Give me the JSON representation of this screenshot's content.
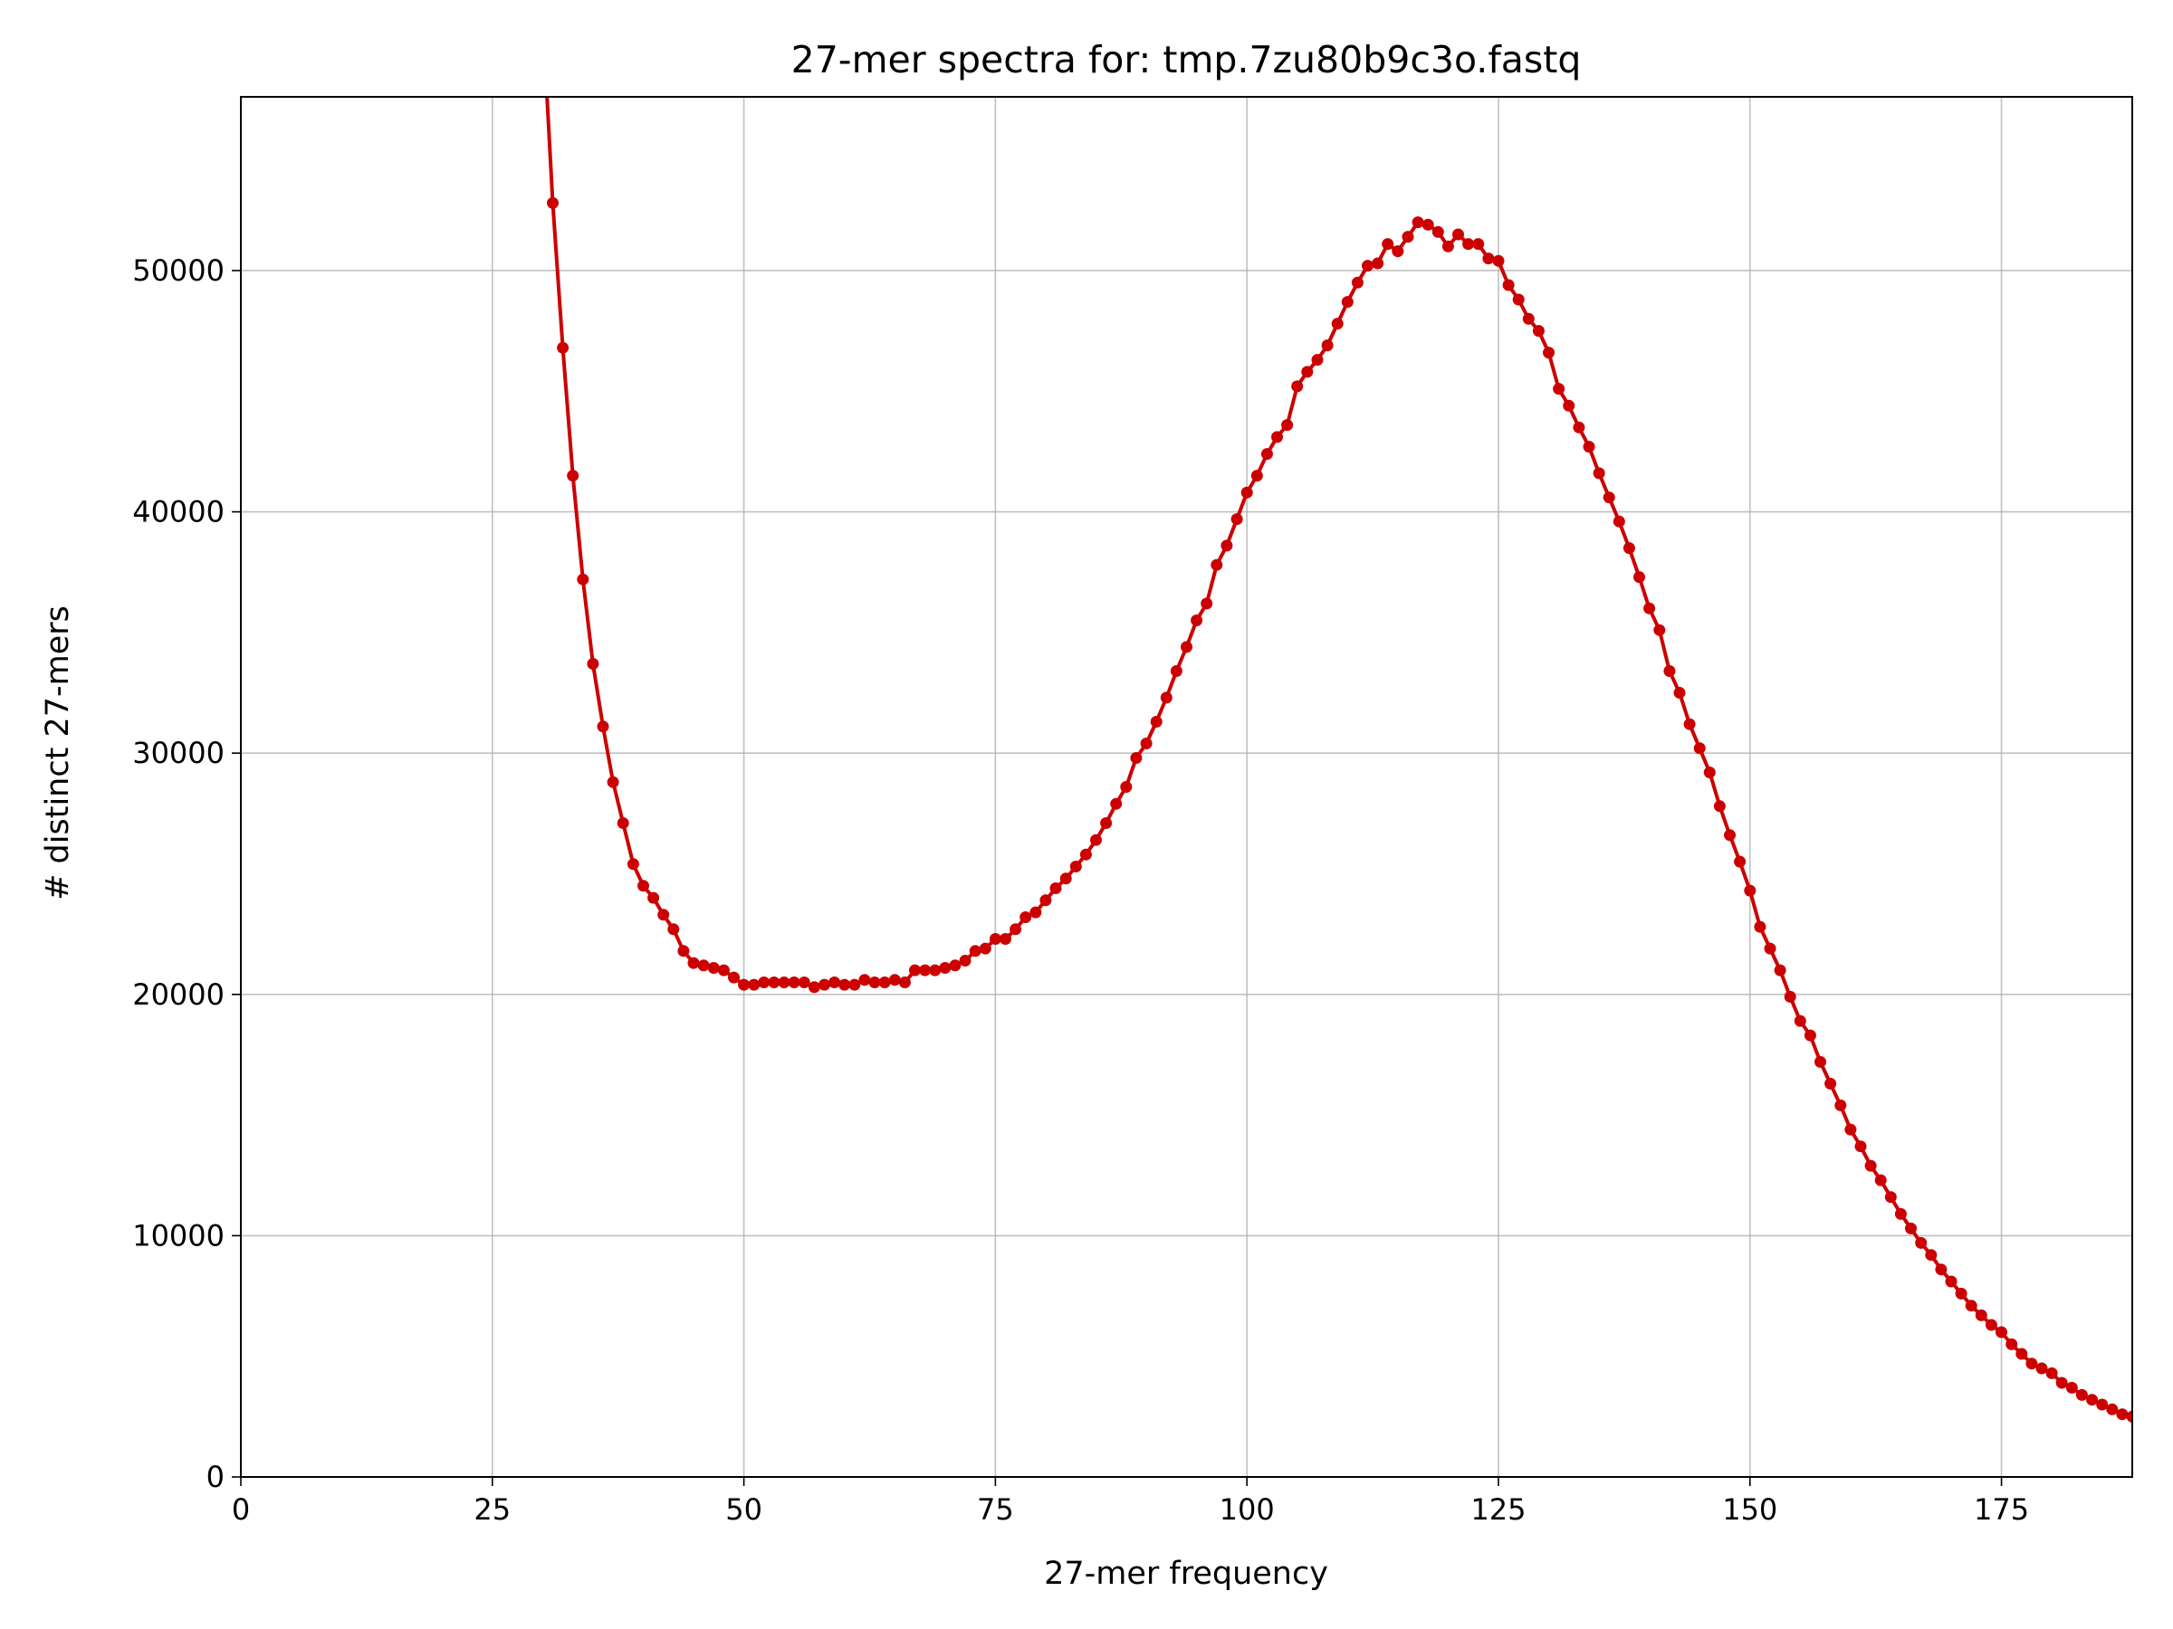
{
  "chart_data": {
    "type": "line",
    "title": "27-mer spectra for: tmp.7zu80b9c3o.fastq",
    "xlabel": "27-mer frequency",
    "ylabel": "# distinct 27-mers",
    "xlim": [
      0,
      188
    ],
    "ylim": [
      0,
      57200
    ],
    "xticks": [
      0,
      25,
      50,
      75,
      100,
      125,
      150,
      175
    ],
    "yticks": [
      0,
      10000,
      20000,
      30000,
      40000,
      50000
    ],
    "grid": true,
    "legend": "none",
    "series": [
      {
        "color": "#cc0000",
        "marker": "circle",
        "x": [
          30,
          31,
          32,
          33,
          34,
          35,
          36,
          37,
          38,
          39,
          40,
          41,
          42,
          43,
          44,
          45,
          46,
          47,
          48,
          49,
          50,
          51,
          52,
          53,
          54,
          55,
          56,
          57,
          58,
          59,
          60,
          61,
          62,
          63,
          64,
          65,
          66,
          67,
          68,
          69,
          70,
          71,
          72,
          73,
          74,
          75,
          76,
          77,
          78,
          79,
          80,
          81,
          82,
          83,
          84,
          85,
          86,
          87,
          88,
          89,
          90,
          91,
          92,
          93,
          94,
          95,
          96,
          97,
          98,
          99,
          100,
          101,
          102,
          103,
          104,
          105,
          106,
          107,
          108,
          109,
          110,
          111,
          112,
          113,
          114,
          115,
          116,
          117,
          118,
          119,
          120,
          121,
          122,
          123,
          124,
          125,
          126,
          127,
          128,
          129,
          130,
          131,
          132,
          133,
          134,
          135,
          136,
          137,
          138,
          139,
          140,
          141,
          142,
          143,
          144,
          145,
          146,
          147,
          148,
          149,
          150,
          151,
          152,
          153,
          154,
          155,
          156,
          157,
          158,
          159,
          160,
          161,
          162,
          163,
          164,
          165,
          166,
          167,
          168,
          169,
          170,
          171,
          172,
          173,
          174,
          175,
          176,
          177,
          178,
          179,
          180,
          181,
          182,
          183,
          184,
          185,
          186,
          187,
          188
        ],
        "y": [
          60500,
          52800,
          46800,
          41500,
          37200,
          33700,
          31100,
          28800,
          27100,
          25400,
          24500,
          24000,
          23300,
          22700,
          21800,
          21300,
          21200,
          21100,
          21000,
          20700,
          20400,
          20400,
          20500,
          20500,
          20500,
          20500,
          20500,
          20300,
          20400,
          20500,
          20400,
          20400,
          20600,
          20500,
          20500,
          20600,
          20500,
          21000,
          21000,
          21000,
          21100,
          21200,
          21400,
          21800,
          21900,
          22300,
          22300,
          22700,
          23200,
          23400,
          23900,
          24400,
          24800,
          25300,
          25800,
          26400,
          27100,
          27900,
          28600,
          29800,
          30400,
          31300,
          32300,
          33400,
          34400,
          35500,
          36200,
          37800,
          38600,
          39700,
          40800,
          41500,
          42400,
          43100,
          43600,
          45200,
          45800,
          46300,
          46900,
          47800,
          48700,
          49500,
          50200,
          50300,
          51100,
          50800,
          51400,
          52000,
          51900,
          51600,
          51000,
          51500,
          51100,
          51100,
          50500,
          50400,
          49400,
          48800,
          48000,
          47500,
          46600,
          45100,
          44400,
          43500,
          42700,
          41600,
          40600,
          39600,
          38500,
          37300,
          36000,
          35100,
          33400,
          32500,
          31200,
          30200,
          29200,
          27800,
          26600,
          25500,
          24300,
          22800,
          21900,
          21000,
          19900,
          18900,
          18300,
          17200,
          16300,
          15400,
          14400,
          13700,
          12900,
          12300,
          11600,
          10900,
          10300,
          9700,
          9200,
          8600,
          8100,
          7600,
          7100,
          6700,
          6300,
          6000,
          5500,
          5100,
          4700,
          4500,
          4300,
          3900,
          3700,
          3400,
          3200,
          3000,
          2800,
          2600,
          2500
        ]
      }
    ]
  }
}
